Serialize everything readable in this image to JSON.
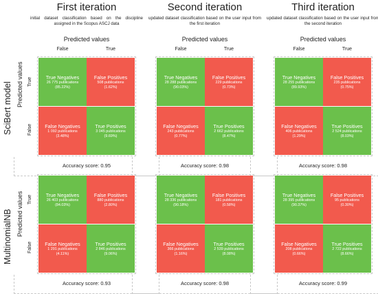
{
  "iterations": [
    {
      "title": "First iteration",
      "desc": "initial dataset classification based on the discipline assigned in the Scopus ASCJ data"
    },
    {
      "title": "Second iteration",
      "desc": "updated dataset classification based on the user input from the first iteration"
    },
    {
      "title": "Third iteration",
      "desc": "updated dataset classification based on the user input from the second iteration"
    }
  ],
  "axis": {
    "predicted": "Predicted values",
    "false": "False",
    "true": "True"
  },
  "models": [
    "SciBert model",
    "MultinomialNB"
  ],
  "labels": {
    "tn": "True Negatives",
    "fp": "False Positives",
    "fn": "False Negatives",
    "tp": "True Positives"
  },
  "matrices": {
    "m0": {
      "i0": {
        "tn": "26 775 publications",
        "tn_p": "(85.22%)",
        "fp": "508 publications",
        "fp_p": "(1.62%)",
        "fn": "1 092 publications",
        "fn_p": "(3.48%)",
        "tp": "3 045 publications",
        "tp_p": "(9.69%)",
        "acc": "Accuracy score: 0.95"
      },
      "i1": {
        "tn": "28 288 publications",
        "tn_p": "(90.03%)",
        "fp": "229 publications",
        "fp_p": "(0.73%)",
        "fn": "243 publications",
        "fn_p": "(0.77%)",
        "tp": "2 662 publications",
        "tp_p": "(8.47%)",
        "acc": "Accuracy score: 0.98"
      },
      "i2": {
        "tn": "28 255 publications",
        "tn_p": "(89.93%)",
        "fp": "235 publications",
        "fp_p": "(0.75%)",
        "fn": "406 publications",
        "fn_p": "(1.29%)",
        "tp": "2 524 publications",
        "tp_p": "(8.03%)",
        "acc": "Accuracy score: 0.98"
      }
    },
    "m1": {
      "i0": {
        "tn": "26 403 publications",
        "tn_p": "(84.03%)",
        "fp": "880 publications",
        "fp_p": "(2.80%)",
        "fn": "1 291 publications",
        "fn_p": "(4.11%)",
        "tp": "2 846 publications",
        "tp_p": "(9.06%)",
        "acc": "Accuracy score: 0.93"
      },
      "i1": {
        "tn": "28 336 publications",
        "tn_p": "(90.18%)",
        "fp": "181 publications",
        "fp_p": "(0.58%)",
        "fn": "366 publications",
        "fn_p": "(1.16%)",
        "tp": "2 539 publications",
        "tp_p": "(8.08%)",
        "acc": "Accuracy score: 0.98"
      },
      "i2": {
        "tn": "28 395 publications",
        "tn_p": "(90.37%)",
        "fp": "95 publications",
        "fp_p": "(0.30%)",
        "fn": "208 publications",
        "fn_p": "(0.66%)",
        "tp": "2 722 publications",
        "tp_p": "(8.66%)",
        "acc": "Accuracy score: 0.99"
      }
    }
  },
  "colors": {
    "correct": "#6bc04b",
    "incorrect": "#f25a4d"
  }
}
